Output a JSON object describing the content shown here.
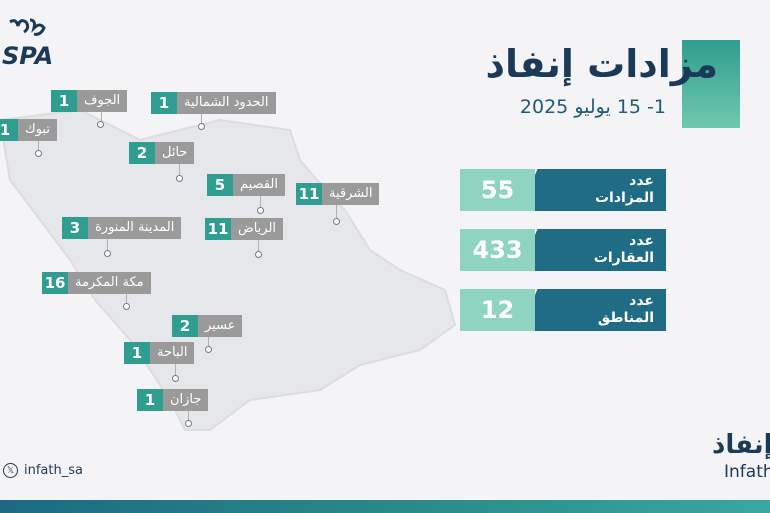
{
  "header": {
    "title": "مزادات إنفاذ",
    "subtitle": "1- 15 يوليو 2025"
  },
  "stats": [
    {
      "label_line1": "عدد",
      "label_line2": "المزادات",
      "value": "55"
    },
    {
      "label_line1": "عدد",
      "label_line2": "العقارات",
      "value": "433"
    },
    {
      "label_line1": "عدد",
      "label_line2": "المناطق",
      "value": "12"
    }
  ],
  "regions": [
    {
      "name": "الجوف",
      "count": "1"
    },
    {
      "name": "الحدود الشمالية",
      "count": "1"
    },
    {
      "name": "تبوك",
      "count": "1"
    },
    {
      "name": "حائل",
      "count": "2"
    },
    {
      "name": "القصيم",
      "count": "5"
    },
    {
      "name": "الشرقية",
      "count": "11"
    },
    {
      "name": "المدينة المنورة",
      "count": "3"
    },
    {
      "name": "الرياض",
      "count": "11"
    },
    {
      "name": "مكة المكرمة",
      "count": "16"
    },
    {
      "name": "عسير",
      "count": "2"
    },
    {
      "name": "الباحة",
      "count": "1"
    },
    {
      "name": "جازان",
      "count": "1"
    }
  ],
  "brand": {
    "spa_logo": "SPA",
    "infath_ar": "إنفاذ",
    "infath_en": "Infath"
  },
  "social": {
    "icon": "x-icon",
    "handle": "infath_sa"
  },
  "colors": {
    "accent_teal": "#2f9d8f",
    "navy": "#1b3a57",
    "stat_label_bg": "#1f6c84",
    "stat_value_bg": "#8ed4bf",
    "region_label_bg": "#9a9a9a"
  }
}
